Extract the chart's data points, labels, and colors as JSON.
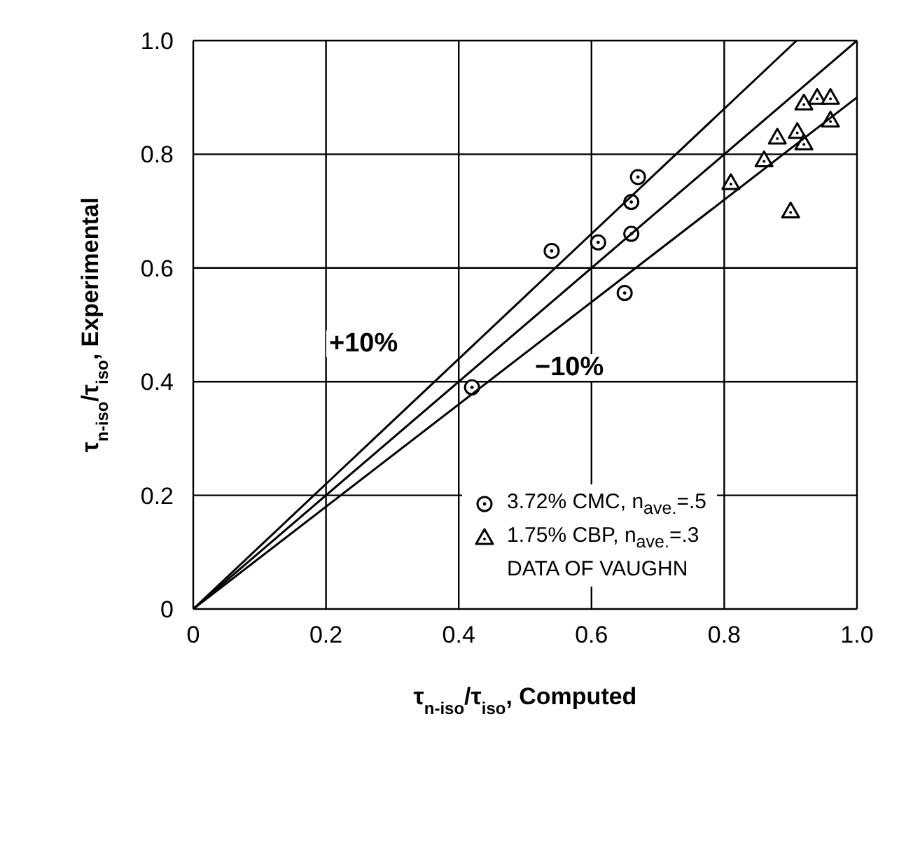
{
  "chart_data": {
    "type": "scatter",
    "xlabel": "τ$_{n-iso}$/τ$_{iso}$, Computed",
    "ylabel": "τ$_{n-iso}$/τ$_{iso}$, Experimental",
    "xlim": [
      0,
      1
    ],
    "ylim": [
      0,
      1
    ],
    "xticks": [
      0,
      0.2,
      0.4,
      0.6,
      0.8,
      {
        "value": 1,
        "label": "1.0"
      }
    ],
    "yticks": [
      0,
      0.2,
      0.4,
      0.6,
      0.8,
      {
        "value": 1,
        "label": "1.0"
      }
    ],
    "grid": true,
    "legend": "bottom right",
    "series": [
      {
        "name": "3.72% CMC, n$_{ave.}$=.5",
        "type": "scatter",
        "marker": "circle",
        "color": "#000000",
        "x": [
          0.42,
          0.54,
          0.61,
          0.65,
          0.66,
          0.66,
          0.67
        ],
        "values": [
          0.39,
          0.63,
          0.645,
          0.556,
          0.66,
          0.716,
          0.76
        ]
      },
      {
        "name": "1.75% CBP, n$_{ave.}$=.3",
        "type": "scatter",
        "marker": "triangle",
        "color": "#000000",
        "x": [
          0.81,
          0.86,
          0.88,
          0.9,
          0.91,
          0.92,
          0.92,
          0.94,
          0.96,
          0.96
        ],
        "values": [
          0.75,
          0.79,
          0.83,
          0.7,
          0.84,
          0.82,
          0.89,
          0.9,
          0.9,
          0.86
        ]
      },
      {
        "type": "line",
        "marker": "none",
        "color": "#000000",
        "x": [
          0,
          1
        ],
        "values": [
          0,
          1
        ]
      },
      {
        "type": "line",
        "marker": "none",
        "color": "#000000",
        "x": [
          0,
          0.909
        ],
        "values": [
          0,
          1
        ]
      },
      {
        "type": "line",
        "marker": "none",
        "color": "#000000",
        "x": [
          0,
          1
        ],
        "values": [
          0,
          0.9
        ]
      }
    ],
    "legend_title": "DATA OF VAUGHN",
    "annotations": [
      "+10%",
      "−10%"
    ]
  }
}
